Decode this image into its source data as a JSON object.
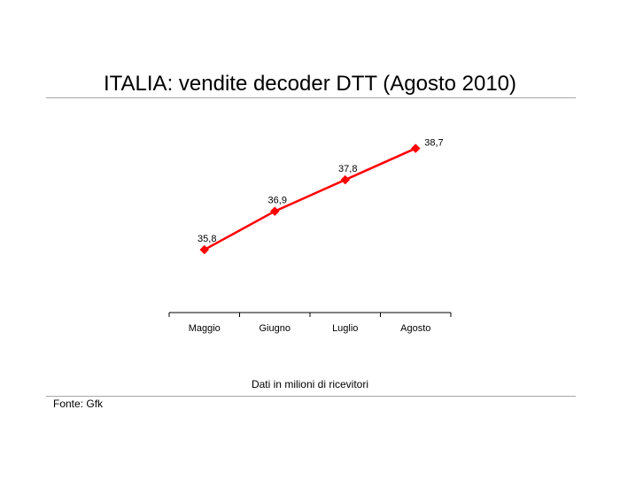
{
  "chart_data": {
    "type": "line",
    "title": "ITALIA: vendite decoder DTT (Agosto 2010)",
    "categories": [
      "Maggio",
      "Giugno",
      "Luglio",
      "Agosto"
    ],
    "series": [
      {
        "values": [
          35.8,
          36.9,
          37.8,
          38.7
        ],
        "value_labels": [
          "35,8",
          "36,9",
          "37,8",
          "38,7"
        ],
        "color": "#ff0000",
        "marker": "diamond"
      }
    ],
    "ylim": [
      34.0,
      39.5
    ],
    "grid": false,
    "legend": "none",
    "xlabel": "",
    "ylabel": "",
    "note": "Dati in milioni di ricevitori",
    "source": "Fonte: Gfk"
  }
}
